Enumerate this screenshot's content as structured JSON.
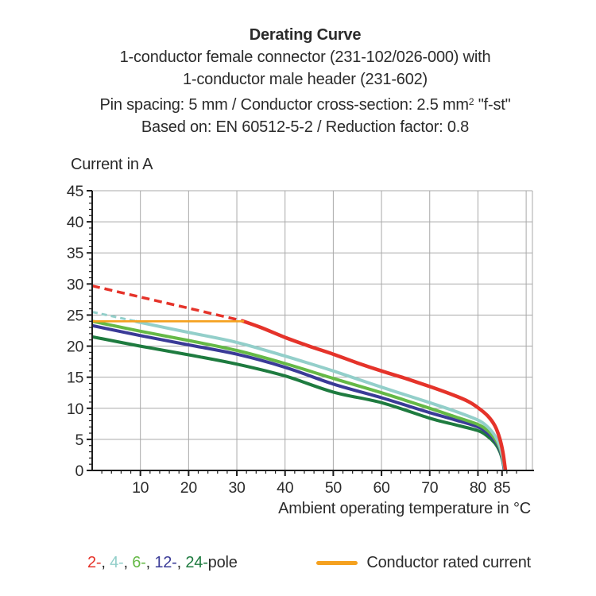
{
  "title": {
    "line1": "Derating Curve",
    "line2": "1-conductor female connector (231-102/026-000) with",
    "line3": "1-conductor male header (231-602)",
    "line4_pre": "Pin spacing: 5 mm / Conductor cross-section: 2.5 mm",
    "line4_sup": "2",
    "line4_post": " \"f-st\"",
    "line5": "Based on: EN 60512-5-2 / Reduction factor: 0.8"
  },
  "chart_data": {
    "type": "line",
    "title": "Derating Curve",
    "xlabel": "Ambient operating temperature in °C",
    "ylabel": "Current in A",
    "xlim": [
      0,
      91.3
    ],
    "ylim": [
      0,
      45
    ],
    "x_ticks": [
      10,
      20,
      30,
      40,
      50,
      60,
      70,
      80,
      85
    ],
    "y_ticks": [
      0,
      5,
      10,
      15,
      20,
      25,
      30,
      35,
      40,
      45
    ],
    "x_minor_step": 2,
    "y_minor_step": 1,
    "grid": true,
    "grid_color": "#a9a9a9",
    "axis_color": "#1c1c1c",
    "text_color": "#2b2b2b",
    "series": [
      {
        "name": "24-pole",
        "color": "#1e7b3f",
        "width": 4,
        "points": [
          [
            0,
            21.5
          ],
          [
            10,
            20.0
          ],
          [
            20,
            18.6
          ],
          [
            30,
            17.1
          ],
          [
            40,
            15.2
          ],
          [
            50,
            12.6
          ],
          [
            60,
            10.9
          ],
          [
            70,
            8.4
          ],
          [
            75,
            7.4
          ],
          [
            80,
            6.4
          ],
          [
            82,
            5.5
          ],
          [
            83.5,
            4.4
          ],
          [
            84.5,
            3.1
          ],
          [
            85.1,
            1.6
          ],
          [
            85.5,
            0
          ]
        ]
      },
      {
        "name": "12-pole",
        "color": "#3a3b97",
        "width": 4,
        "points": [
          [
            0,
            23.3
          ],
          [
            10,
            21.7
          ],
          [
            20,
            20.2
          ],
          [
            30,
            18.7
          ],
          [
            40,
            16.6
          ],
          [
            50,
            13.9
          ],
          [
            60,
            11.7
          ],
          [
            70,
            9.3
          ],
          [
            75,
            8.2
          ],
          [
            80,
            7.0
          ],
          [
            82,
            6.0
          ],
          [
            83.5,
            4.8
          ],
          [
            84.5,
            3.4
          ],
          [
            85.1,
            1.8
          ],
          [
            85.5,
            0
          ]
        ]
      },
      {
        "name": "6-pole",
        "color": "#65b946",
        "width": 4,
        "points": [
          [
            0,
            24.0
          ],
          [
            10,
            22.4
          ],
          [
            20,
            20.9
          ],
          [
            30,
            19.3
          ],
          [
            40,
            17.2
          ],
          [
            50,
            14.8
          ],
          [
            60,
            12.5
          ],
          [
            70,
            10.0
          ],
          [
            75,
            8.7
          ],
          [
            80,
            7.4
          ],
          [
            82,
            6.4
          ],
          [
            83.5,
            5.1
          ],
          [
            84.5,
            3.7
          ],
          [
            85.1,
            2.0
          ],
          [
            85.6,
            0
          ]
        ]
      },
      {
        "name": "4-pole",
        "color": "#93cfca",
        "width": 4,
        "dash_until": 9,
        "dash_pattern": "7 5",
        "points": [
          [
            0,
            25.5
          ],
          [
            9,
            24.0
          ],
          [
            10,
            23.8
          ],
          [
            20,
            22.2
          ],
          [
            30,
            20.6
          ],
          [
            40,
            18.4
          ],
          [
            50,
            16.0
          ],
          [
            60,
            13.4
          ],
          [
            70,
            10.9
          ],
          [
            75,
            9.6
          ],
          [
            80,
            8.1
          ],
          [
            82,
            7.0
          ],
          [
            83.5,
            5.6
          ],
          [
            84.5,
            4.0
          ],
          [
            85.1,
            2.2
          ],
          [
            85.6,
            0
          ]
        ]
      },
      {
        "name": "2-pole",
        "color": "#e5332a",
        "width": 4.5,
        "dash_until": 31,
        "dash_pattern": "10 6",
        "points": [
          [
            0,
            29.7
          ],
          [
            10,
            27.9
          ],
          [
            20,
            26.1
          ],
          [
            31,
            24.1
          ],
          [
            35,
            23.0
          ],
          [
            40,
            21.4
          ],
          [
            45,
            20.0
          ],
          [
            50,
            18.7
          ],
          [
            55,
            17.3
          ],
          [
            60,
            16.0
          ],
          [
            65,
            14.8
          ],
          [
            70,
            13.5
          ],
          [
            75,
            12.1
          ],
          [
            78,
            11.1
          ],
          [
            80,
            10.1
          ],
          [
            82,
            8.8
          ],
          [
            83.5,
            7.2
          ],
          [
            84.5,
            5.2
          ],
          [
            85.2,
            2.8
          ],
          [
            85.7,
            0
          ]
        ]
      }
    ],
    "rated_current_line": {
      "label": "Conductor rated current",
      "color": "#f5a11f",
      "value": 24,
      "x_start": 0,
      "x_end": 31.5,
      "width": 2.6
    }
  },
  "legend": {
    "pole_items": [
      {
        "label": "2-",
        "color": "#e5332a"
      },
      {
        "label": "4-",
        "color": "#93cfca"
      },
      {
        "label": "6-",
        "color": "#65b946"
      },
      {
        "label": "12-",
        "color": "#3a3b97"
      },
      {
        "label": "24-",
        "color": "#1e7b3f"
      }
    ],
    "separator": ", ",
    "suffix": "pole",
    "rated_label": "Conductor rated current"
  }
}
